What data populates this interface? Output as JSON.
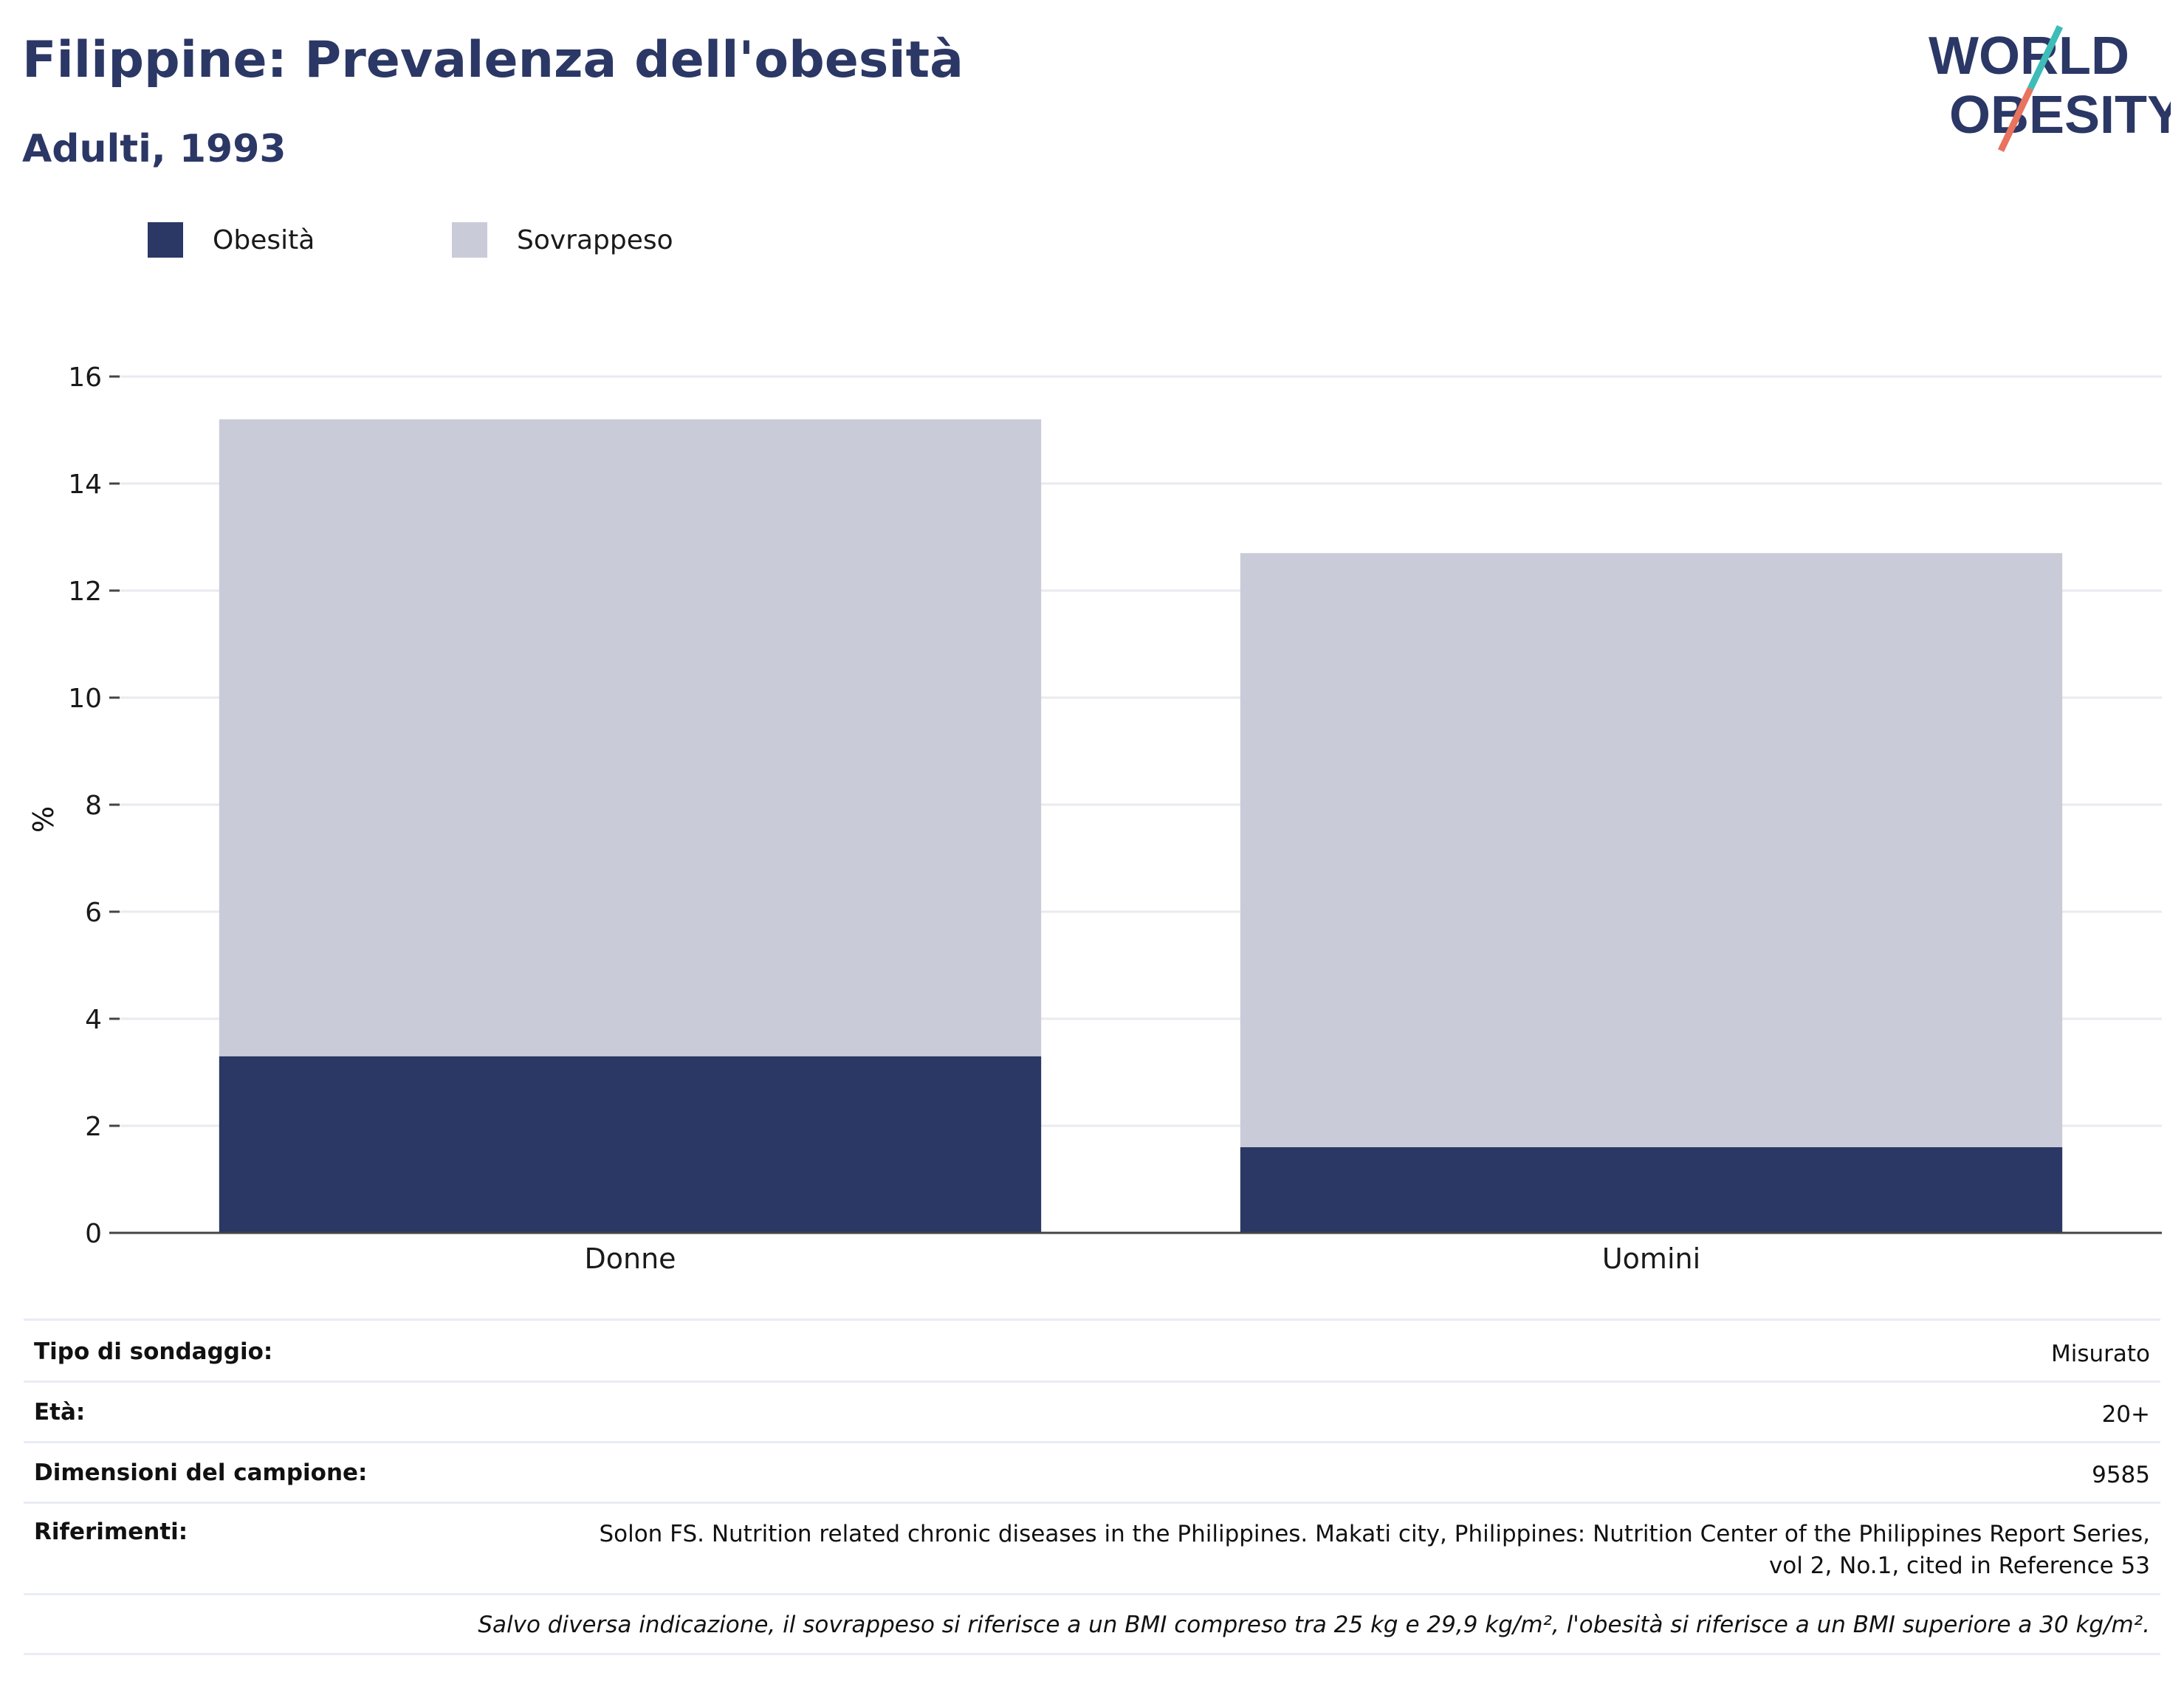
{
  "header": {
    "title": "Filippine: Prevalenza dell'obesità",
    "subtitle": "Adulti, 1993",
    "logo_line1": "WORLD",
    "logo_line2": "OBESITY"
  },
  "legend": [
    {
      "label": "Obesità",
      "color": "#2b3765"
    },
    {
      "label": "Sovrappeso",
      "color": "#c9ccd8"
    }
  ],
  "chart_data": {
    "type": "bar",
    "stacked": true,
    "categories": [
      "Donne",
      "Uomini"
    ],
    "series": [
      {
        "name": "Obesità",
        "values": [
          3.3,
          1.6
        ],
        "color": "#2b3765"
      },
      {
        "name": "Sovrappeso",
        "values": [
          11.9,
          11.1
        ],
        "color": "#c9ccd8"
      }
    ],
    "ylabel": "%",
    "ylim": [
      0,
      16
    ],
    "yticks": [
      0,
      2,
      4,
      6,
      8,
      10,
      12,
      14,
      16
    ],
    "grid": true,
    "legend_position": "top-left"
  },
  "info": {
    "rows": [
      {
        "label": "Tipo di sondaggio:",
        "value": "Misurato"
      },
      {
        "label": "Età:",
        "value": "20+"
      },
      {
        "label": "Dimensioni del campione:",
        "value": "9585"
      },
      {
        "label": "Riferimenti:",
        "value_line1": "Solon FS. Nutrition related chronic diseases in the Philippines. Makati city, Philippines: Nutrition Center of the Philippines Report Series,",
        "value_line2": "vol 2, No.1, cited in Reference 53"
      }
    ],
    "note": "Salvo diversa indicazione, il sovrappeso si riferisce a un BMI compreso tra 25 kg e 29,9 kg/m², l'obesità si riferisce a un BMI superiore a 30 kg/m²."
  }
}
